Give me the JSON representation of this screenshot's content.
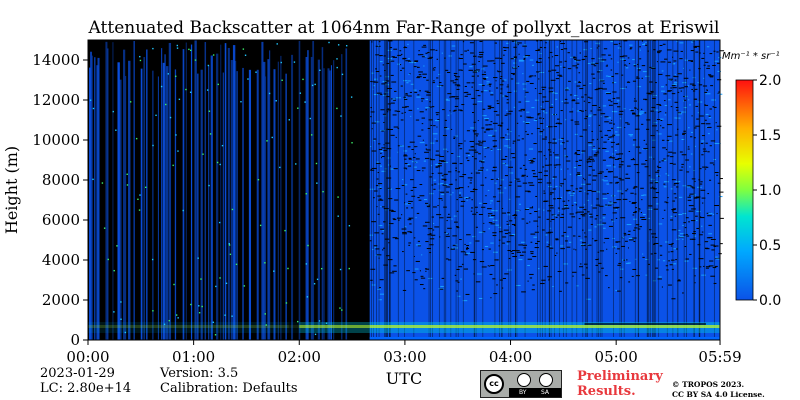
{
  "chart_data": {
    "type": "heatmap",
    "title": "Attenuated Backscatter at 1064nm Far-Range of pollyxt_lacros at Eriswil",
    "xlabel": "UTC",
    "ylabel": "Height (m)",
    "x_ticks": [
      "00:00",
      "01:00",
      "02:00",
      "03:00",
      "04:00",
      "05:00",
      "05:59"
    ],
    "y_ticks": [
      "0",
      "2000",
      "4000",
      "6000",
      "8000",
      "10000",
      "12000",
      "14000"
    ],
    "ylim": [
      0,
      15000
    ],
    "xlim_hours": [
      0,
      5.983
    ],
    "colorbar": {
      "label": "Mm⁻¹ * sr⁻¹",
      "ticks": [
        "0.0",
        "0.5",
        "1.0",
        "1.5",
        "2.0"
      ],
      "range": [
        0,
        2.0
      ],
      "colormap": "jet"
    },
    "no_data_intervals_utc": [
      [
        "02:30",
        "02:40"
      ]
    ],
    "sparse_sampling_until_utc": "02:40",
    "boundary_layer_top_m": 400,
    "background_value": 0.1,
    "colors": {
      "no_data": "#000000",
      "background_signal": "#0b52e8"
    }
  },
  "info": {
    "date": "2023-01-29",
    "lc": "LC: 2.80e+14",
    "version": "Version: 3.5",
    "calibration": "Calibration: Defaults",
    "preliminary": "Preliminary Results.",
    "copyright_line1": "© TROPOS 2023.",
    "copyright_line2": "CC BY SA 4.0 License.",
    "license_badge": [
      "cc",
      "BY",
      "SA"
    ]
  }
}
